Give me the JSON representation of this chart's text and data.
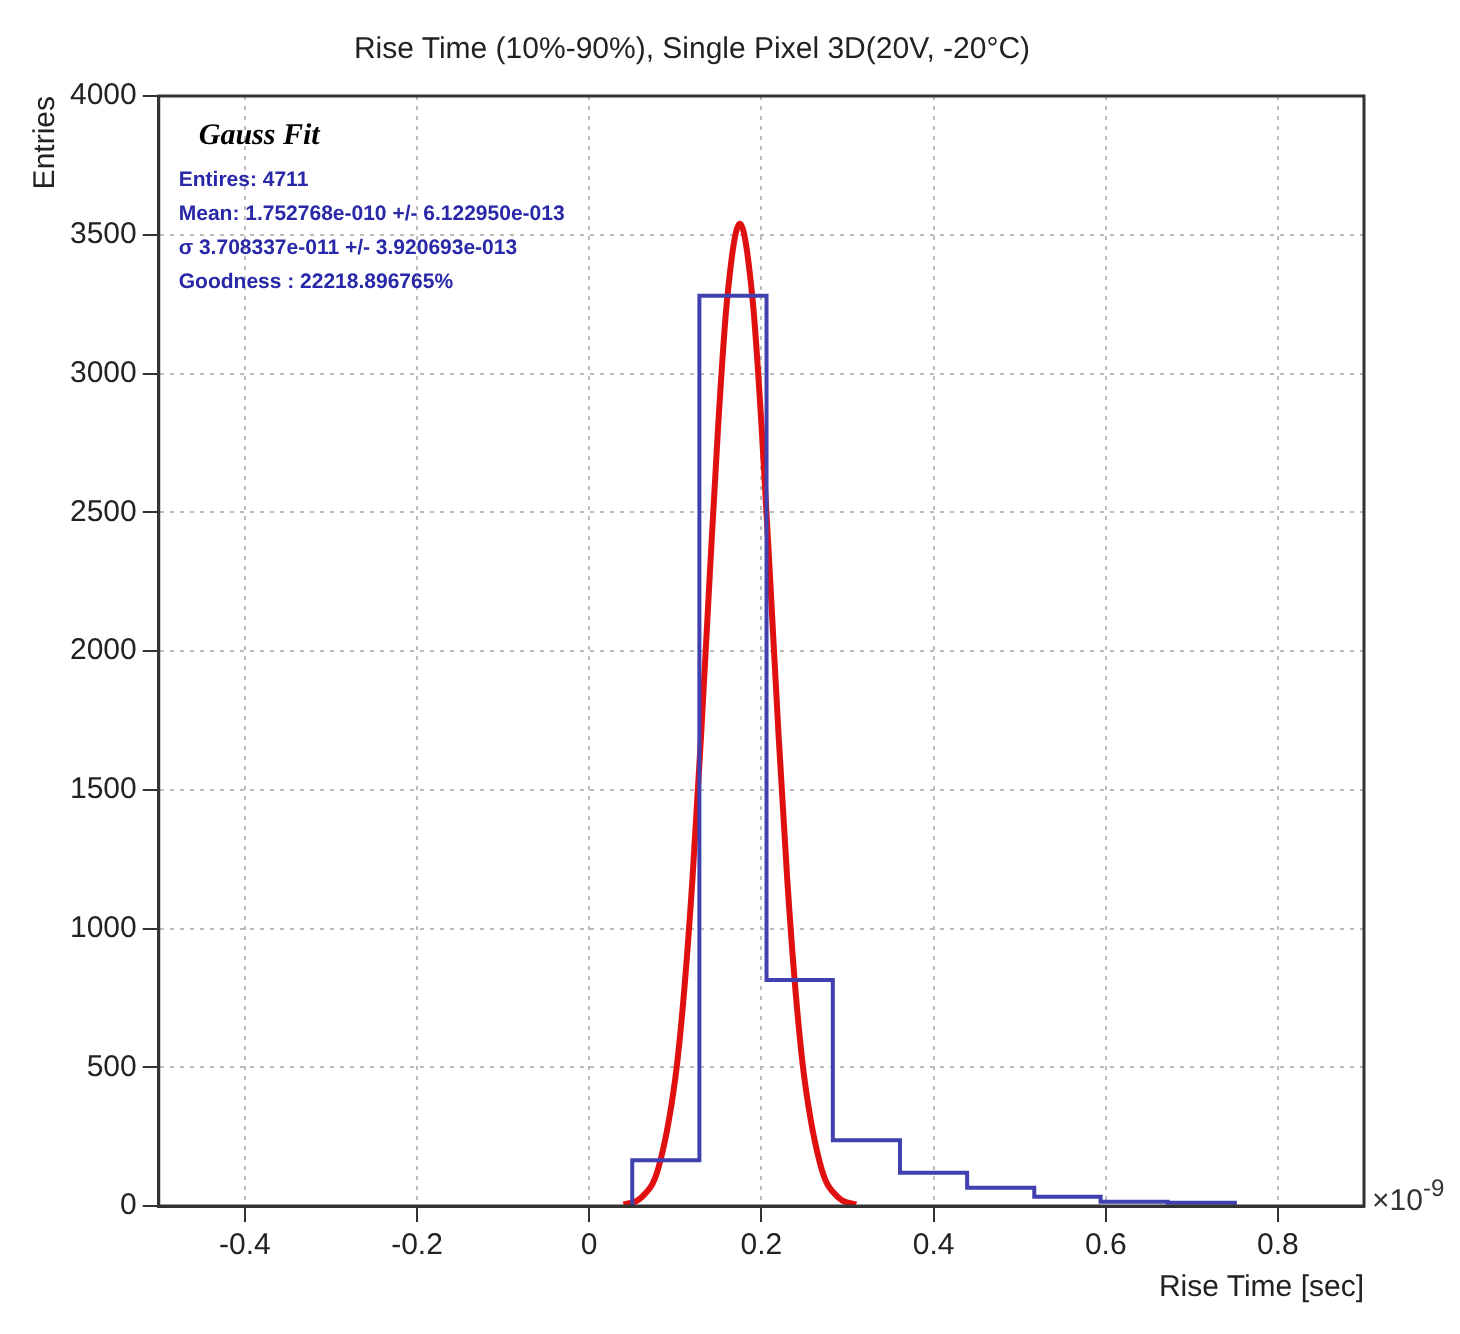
{
  "chart_data": {
    "type": "histogram",
    "title": "Rise Time (10%-90%), Single Pixel 3D(20V, -20°C)",
    "xlabel": "Rise Time [sec]",
    "ylabel": "Entries",
    "annotations": [
      "Gauss Fit",
      "Entires: 4711",
      "Mean: 1.752768e-010 +/- 6.122950e-013",
      "σ 3.708337e-011 +/- 3.920693e-013",
      "Goodness : 22218.896765%",
      "×10$^{-9}$"
    ],
    "series": [
      {
        "color": "#4040b0",
        "bins": [
          0.05,
          0.128,
          0.206,
          0.283,
          0.361,
          0.439,
          0.517,
          0.594,
          0.672,
          0.75
        ],
        "values": [
          165,
          3280,
          814,
          237,
          120,
          66,
          33,
          15,
          12
        ]
      },
      {
        "type": "line",
        "color": "#e01010",
        "x": [
          0.04,
          0.06,
          0.08,
          0.1,
          0.11,
          0.12,
          0.13,
          0.14,
          0.15,
          0.16,
          0.175,
          0.19,
          0.2,
          0.21,
          0.22,
          0.23,
          0.24,
          0.25,
          0.27,
          0.29,
          0.31
        ],
        "values": [
          5,
          29,
          133,
          460,
          763,
          1180,
          1696,
          2270,
          2821,
          3260,
          3540,
          3260,
          2821,
          2270,
          1696,
          1180,
          763,
          460,
          133,
          29,
          5
        ]
      }
    ],
    "xlim": [
      -0.5,
      0.9
    ],
    "xticks": [
      -0.4,
      -0.2,
      0,
      0.2,
      0.4,
      0.6,
      0.8
    ],
    "ylim": [
      0,
      4000
    ],
    "yticks": [
      0,
      500,
      1000,
      1500,
      2000,
      2500,
      3000,
      3500,
      4000
    ],
    "grid": true,
    "legend": false,
    "marker": "none"
  }
}
